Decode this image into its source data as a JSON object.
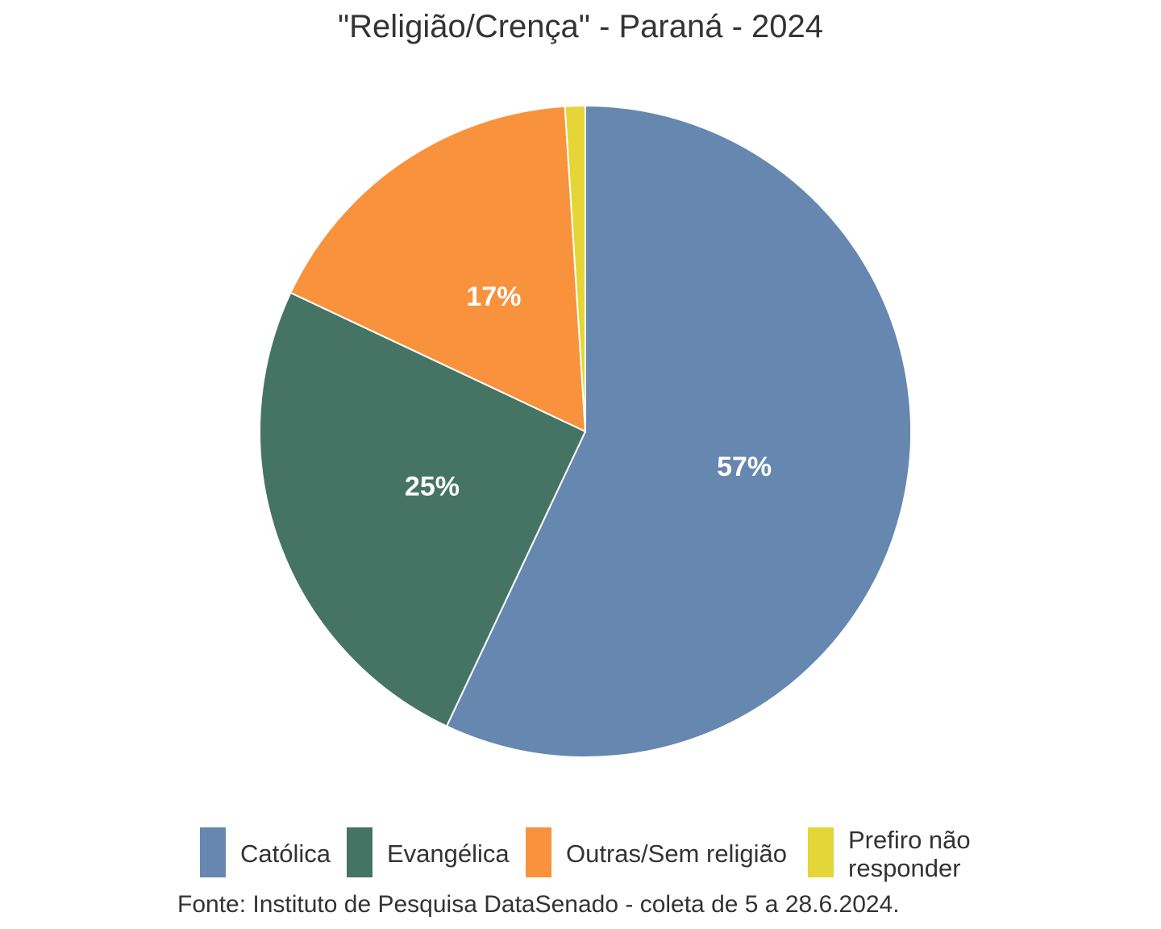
{
  "chart_data": {
    "type": "pie",
    "title": "\"Religião/Crença\" - Paraná - 2024",
    "categories": [
      "Católica",
      "Evangélica",
      "Outras/Sem religião",
      "Prefiro não responder"
    ],
    "values": [
      57,
      25,
      17,
      1
    ],
    "data_labels": [
      "57%",
      "25%",
      "17%",
      ""
    ],
    "colors": [
      "#6587b0",
      "#457464",
      "#f8923c",
      "#e4d636"
    ],
    "legend_position": "bottom",
    "legend_labels": [
      "Católica",
      "Evangélica",
      "Outras/Sem religião",
      "Prefiro não\nresponder"
    ]
  },
  "caption": "Fonte: Instituto de Pesquisa DataSenado - coleta de 5 a 28.6.2024."
}
